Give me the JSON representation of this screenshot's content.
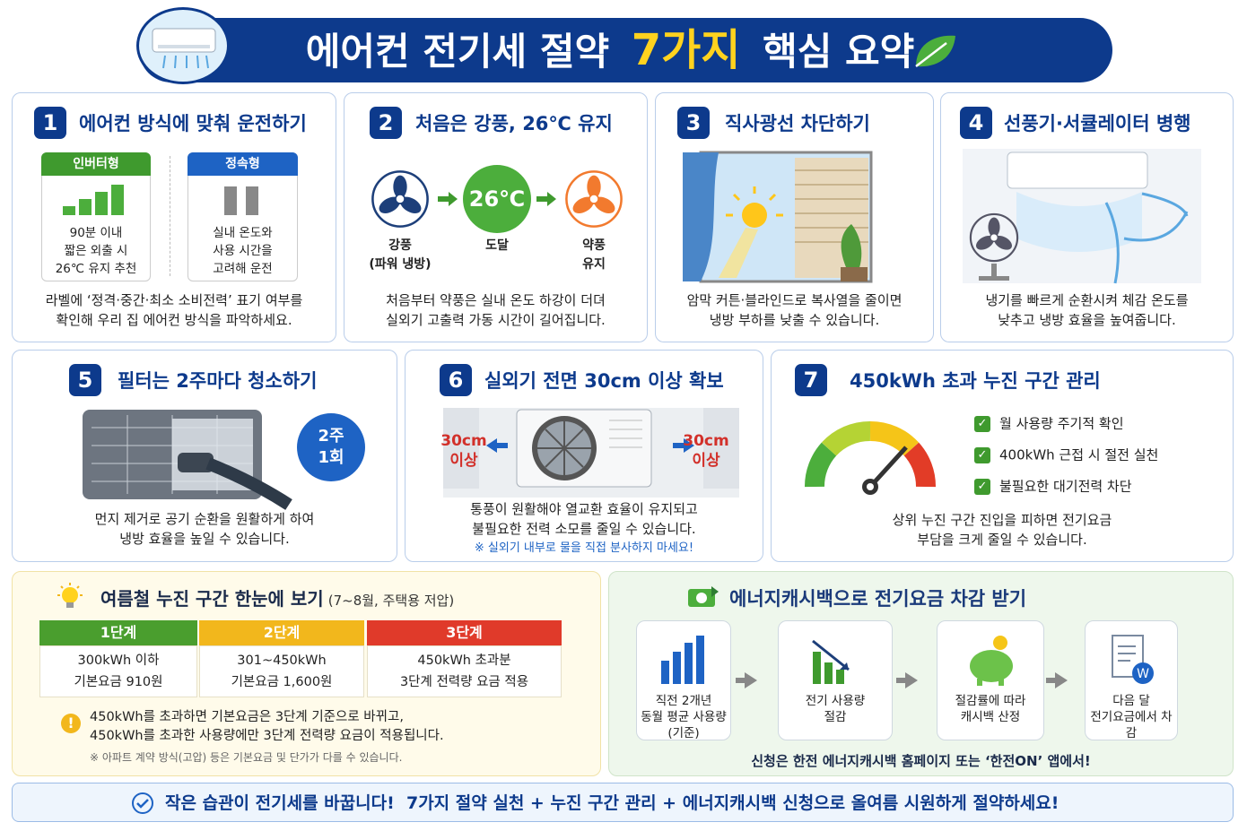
{
  "header": {
    "title_pre": "에어컨 전기세 절약",
    "title_highlight": "7가지",
    "title_post": "핵심 요약"
  },
  "cards": [
    {
      "number": "1",
      "title": "에어컨 방식에 맞춰 운전하기",
      "types": [
        {
          "label": "인버터형",
          "lines": [
            "90분 이내",
            "짧은 외출 시",
            "26℃ 유지 추천"
          ]
        },
        {
          "label": "정속형",
          "lines": [
            "실내 온도와",
            "사용 시간을",
            "고려해 운전"
          ]
        }
      ],
      "description": [
        "라벨에 ‘정격·중간·최소 소비전력’ 표기 여부를",
        "확인해 우리 집 에어컨 방식을 파악하세요."
      ]
    },
    {
      "number": "2",
      "title": "처음은 강풍, 26℃ 유지",
      "steps": [
        {
          "lines": [
            "강풍",
            "(파워 냉방)"
          ]
        },
        {
          "label": "26℃",
          "lines": [
            "도달"
          ]
        },
        {
          "lines": [
            "약풍",
            "유지"
          ]
        }
      ],
      "description": [
        "처음부터 약풍은 실내 온도 하강이 더뎌",
        "실외기 고출력 가동 시간이 길어집니다."
      ]
    },
    {
      "number": "3",
      "title": "직사광선 차단하기",
      "description": [
        "암막 커튼·블라인드로 복사열을 줄이면",
        "냉방 부하를 낮출 수 있습니다."
      ]
    },
    {
      "number": "4",
      "title": "선풍기·서큘레이터 병행",
      "description": [
        "냉기를 빠르게 순환시켜 체감 온도를",
        "낮추고 냉방 효율을 높여줍니다."
      ]
    },
    {
      "number": "5",
      "title": "필터는 2주마다 청소하기",
      "badge": [
        "2주",
        "1회"
      ],
      "description": [
        "먼지 제거로 공기 순환을 원활하게 하여",
        "냉방 효율을 높일 수 있습니다."
      ]
    },
    {
      "number": "6",
      "title": "실외기 전면 30cm 이상 확보",
      "left_clearance": [
        "30cm",
        "이상"
      ],
      "right_clearance": [
        "30cm",
        "이상"
      ],
      "description": [
        "통풍이 원활해야 열교환 효율이 유지되고",
        "불필요한 전력 소모를 줄일 수 있습니다."
      ],
      "note": "※ 실외기 내부로 물을 직접 분사하지 마세요!"
    },
    {
      "number": "7",
      "title": "450kWh 초과 누진 구간 관리",
      "checklist": [
        "월 사용량 주기적 확인",
        "400kWh 근접 시 절전 실천",
        "불필요한 대기전력 차단"
      ],
      "description": [
        "상위 누진 구간 진입을 피하면 전기요금",
        "부담을 크게 줄일 수 있습니다."
      ]
    }
  ],
  "tiers": {
    "title": "여름철 누진 구간 한눈에 보기",
    "subtitle": "(7~8월, 주택용 저압)",
    "rows": [
      {
        "name": "1단계",
        "lines": [
          "300kWh 이하",
          "기본요금 910원"
        ]
      },
      {
        "name": "2단계",
        "lines": [
          "301~450kWh",
          "기본요금 1,600원"
        ]
      },
      {
        "name": "3단계",
        "lines": [
          "450kWh 초과분",
          "3단계 전력량 요금 적용"
        ]
      }
    ],
    "warning": [
      "450kWh를 초과하면 기본요금은 3단계 기준으로 바뀌고,",
      "450kWh를 초과한 사용량에만 3단계 전력량 요금이 적용됩니다."
    ],
    "note": "※ 아파트 계약 방식(고압) 등은 기본요금 및 단가가 다를 수 있습니다."
  },
  "cashback": {
    "title": "에너지캐시백으로 전기요금 차감 받기",
    "steps": [
      {
        "lines": [
          "직전 2개년",
          "동월 평균 사용량",
          "(기준)"
        ]
      },
      {
        "lines": [
          "전기 사용량",
          "절감"
        ]
      },
      {
        "lines": [
          "절감률에 따라",
          "캐시백 산정"
        ]
      },
      {
        "lines": [
          "다음 달",
          "전기요금에서 차감"
        ]
      }
    ],
    "footer": "신청은 한전 에너지캐시백 홈페이지 또는 ‘한전ON’ 앱에서!"
  },
  "banner": "작은 습관이 전기세를 바꿉니다!  7가지 절약 실천 + 누진 구간 관리 + 에너지캐시백 신청으로 올여름 시원하게 절약하세요!"
}
